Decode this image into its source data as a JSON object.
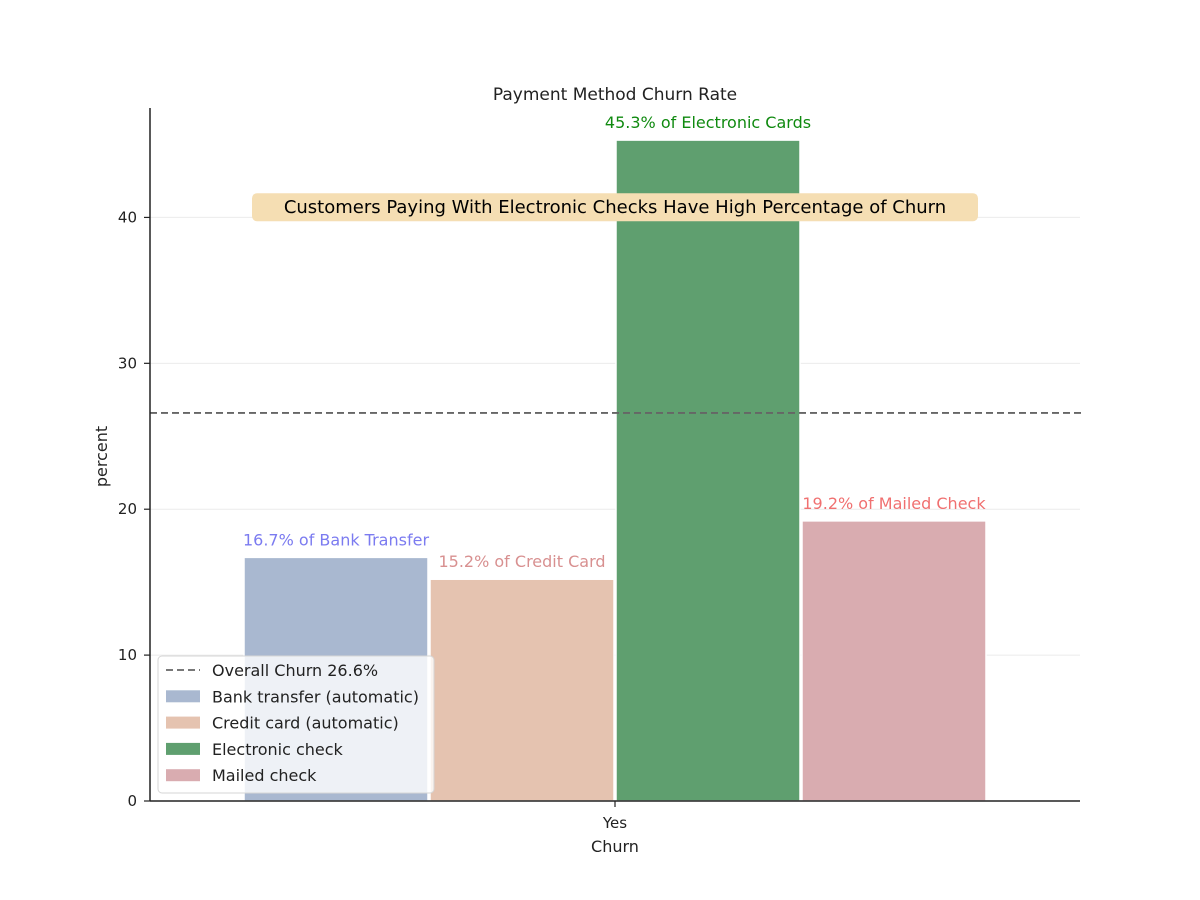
{
  "chart_data": {
    "type": "bar",
    "title": "Payment Method Churn Rate",
    "xlabel": "Churn",
    "ylabel": "percent",
    "categories": [
      "Yes"
    ],
    "ylim": [
      0,
      47.5
    ],
    "yticks": [
      0,
      10,
      20,
      30,
      40
    ],
    "grid": true,
    "series": [
      {
        "name": "Bank transfer (automatic)",
        "values": [
          16.7
        ],
        "color": "#a9b8d0",
        "label": "16.7% of Bank Transfer",
        "label_color": "#7b7bf0"
      },
      {
        "name": "Credit card (automatic)",
        "values": [
          15.2
        ],
        "color": "#e5c3b0",
        "label": "15.2% of Credit Card",
        "label_color": "#d89090"
      },
      {
        "name": "Electronic check",
        "values": [
          45.3
        ],
        "color": "#5f9f6f",
        "label": "45.3% of Electronic Cards",
        "label_color": "#108a10"
      },
      {
        "name": "Mailed check",
        "values": [
          19.2
        ],
        "color": "#d9acb0",
        "label": "19.2% of Mailed Check",
        "label_color": "#f07070"
      }
    ],
    "reference_line": {
      "value": 26.6,
      "label": "Overall Churn 26.6%",
      "style": "dashed",
      "color": "#666666"
    },
    "annotation": {
      "text": "Customers Paying With Electronic Checks Have High Percentage of Churn",
      "y": 40.7,
      "background": "#f5deb3"
    },
    "legend": {
      "position": "lower-left"
    }
  }
}
